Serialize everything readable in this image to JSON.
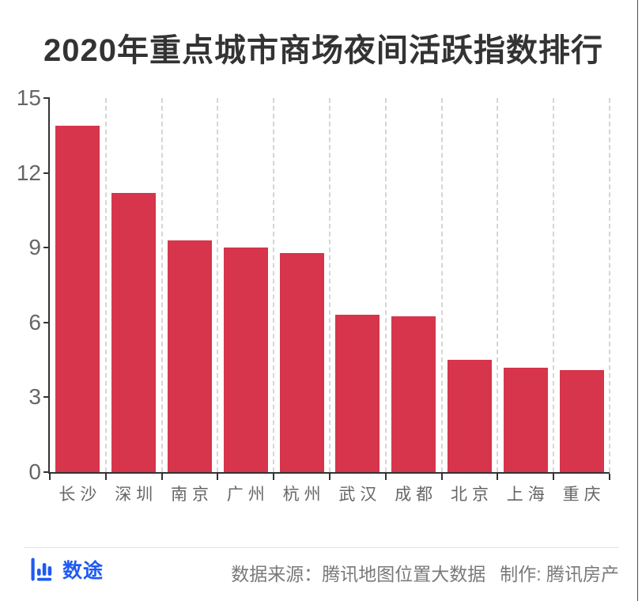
{
  "chart_data": {
    "type": "bar",
    "title": "2020年重点城市商场夜间活跃指数排行",
    "categories": [
      "长沙",
      "深圳",
      "南京",
      "广州",
      "杭州",
      "武汉",
      "成都",
      "北京",
      "上海",
      "重庆"
    ],
    "values": [
      13.9,
      11.2,
      9.3,
      9.0,
      8.8,
      6.3,
      6.25,
      4.5,
      4.2,
      4.1
    ],
    "xlabel": "",
    "ylabel": "",
    "ylim": [
      0,
      15
    ],
    "y_ticks": [
      0,
      3,
      6,
      9,
      12,
      15
    ],
    "legend": "none",
    "grid": "vertical-dashed",
    "bar_color": "#D6354C",
    "axis_color": "#333333",
    "gridline_color": "#d6d6d6",
    "tick_label_color": "#666666",
    "title_color": "#333333"
  },
  "footer": {
    "logo_text": "数途",
    "logo_color": "#1F5AF2",
    "source_text": "数据来源：腾讯地图位置大数据",
    "maker_text": "制作: 腾讯房产"
  }
}
